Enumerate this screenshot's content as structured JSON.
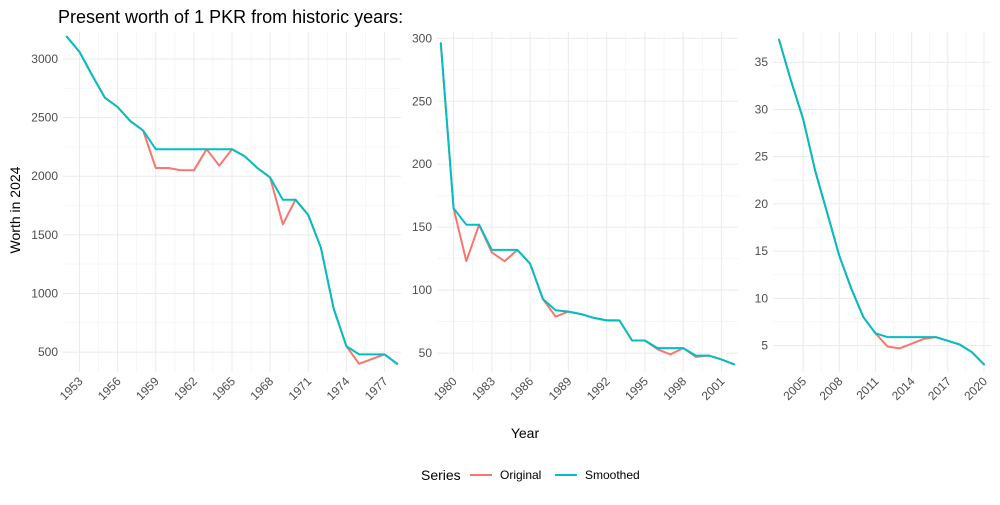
{
  "title": "Present worth of 1 PKR from historic years:",
  "ylabel": "Worth in 2024",
  "xlabel": "Year",
  "legend": {
    "title": "Series",
    "items": [
      {
        "label": "Original",
        "color": "#F8766D"
      },
      {
        "label": "Smoothed",
        "color": "#00BFC4"
      }
    ]
  },
  "chart_data": [
    {
      "type": "line",
      "xlim": [
        1951.7,
        1978.3
      ],
      "ylim": [
        330,
        3230
      ],
      "xticks": [
        1953,
        1956,
        1959,
        1962,
        1965,
        1968,
        1971,
        1974,
        1977
      ],
      "xtick_labels": [
        "1953",
        "1956",
        "1959",
        "1962",
        "1965",
        "1968",
        "1971",
        "1974",
        "1977"
      ],
      "yticks": [
        500,
        1000,
        1500,
        2000,
        2500,
        3000
      ],
      "ytick_labels": [
        "500",
        "1000",
        "1500",
        "2000",
        "2500",
        "3000"
      ],
      "series": [
        {
          "name": "Original",
          "color": "#F8766D",
          "x": [
            1952,
            1953,
            1954,
            1955,
            1956,
            1957,
            1958,
            1959,
            1960,
            1961,
            1962,
            1963,
            1964,
            1965,
            1966,
            1967,
            1968,
            1969,
            1970,
            1971,
            1972,
            1973,
            1974,
            1975,
            1976,
            1977,
            1978
          ],
          "y": [
            3190,
            3060,
            2860,
            2670,
            2590,
            2470,
            2390,
            2070,
            2070,
            2050,
            2050,
            2230,
            2090,
            2230,
            2170,
            2070,
            1990,
            1590,
            1800,
            1670,
            1390,
            870,
            550,
            400,
            440,
            480,
            400
          ]
        },
        {
          "name": "Smoothed",
          "color": "#00BFC4",
          "x": [
            1952,
            1953,
            1954,
            1955,
            1956,
            1957,
            1958,
            1959,
            1960,
            1961,
            1962,
            1963,
            1964,
            1965,
            1966,
            1967,
            1968,
            1969,
            1970,
            1971,
            1972,
            1973,
            1974,
            1975,
            1976,
            1977,
            1978
          ],
          "y": [
            3190,
            3060,
            2860,
            2670,
            2590,
            2470,
            2390,
            2230,
            2230,
            2230,
            2230,
            2230,
            2230,
            2230,
            2170,
            2070,
            1990,
            1800,
            1800,
            1670,
            1390,
            870,
            550,
            480,
            480,
            480,
            400
          ]
        }
      ]
    },
    {
      "type": "line",
      "xlim": [
        1978.7,
        2002.3
      ],
      "ylim": [
        35,
        305
      ],
      "xticks": [
        1980,
        1983,
        1986,
        1989,
        1992,
        1995,
        1998,
        2001
      ],
      "xtick_labels": [
        "1980",
        "1983",
        "1986",
        "1989",
        "1992",
        "1995",
        "1998",
        "2001"
      ],
      "yticks": [
        50,
        100,
        150,
        200,
        250,
        300
      ],
      "ytick_labels": [
        "50",
        "100",
        "150",
        "200",
        "250",
        "300"
      ],
      "series": [
        {
          "name": "Original",
          "color": "#F8766D",
          "x": [
            1979,
            1980,
            1981,
            1982,
            1983,
            1984,
            1985,
            1986,
            1987,
            1988,
            1989,
            1990,
            1991,
            1992,
            1993,
            1994,
            1995,
            1996,
            1997,
            1998,
            1999,
            2000,
            2001,
            2002
          ],
          "y": [
            296,
            165,
            123,
            152,
            130,
            123,
            132,
            121,
            93,
            79,
            83,
            81,
            78,
            76,
            76,
            60,
            60,
            53,
            49,
            54,
            47,
            48,
            45,
            41
          ]
        },
        {
          "name": "Smoothed",
          "color": "#00BFC4",
          "x": [
            1979,
            1980,
            1981,
            1982,
            1983,
            1984,
            1985,
            1986,
            1987,
            1988,
            1989,
            1990,
            1991,
            1992,
            1993,
            1994,
            1995,
            1996,
            1997,
            1998,
            1999,
            2000,
            2001,
            2002
          ],
          "y": [
            296,
            165,
            152,
            152,
            132,
            132,
            132,
            121,
            93,
            84,
            83,
            81,
            78,
            76,
            76,
            60,
            60,
            54,
            54,
            54,
            48,
            48,
            45,
            41
          ]
        }
      ]
    },
    {
      "type": "line",
      "xlim": [
        2002.5,
        2020.5
      ],
      "ylim": [
        2.2,
        38.2
      ],
      "xticks": [
        2005,
        2008,
        2011,
        2014,
        2017,
        2020
      ],
      "xtick_labels": [
        "2005",
        "2008",
        "2011",
        "2014",
        "2017",
        "2020"
      ],
      "yticks": [
        5,
        10,
        15,
        20,
        25,
        30,
        35
      ],
      "ytick_labels": [
        "5",
        "10",
        "15",
        "20",
        "25",
        "30",
        "35"
      ],
      "series": [
        {
          "name": "Original",
          "color": "#F8766D",
          "x": [
            2003,
            2004,
            2005,
            2006,
            2007,
            2008,
            2009,
            2010,
            2011,
            2012,
            2013,
            2014,
            2015,
            2016,
            2017,
            2018,
            2019,
            2020
          ],
          "y": [
            37.4,
            33.0,
            29.0,
            23.5,
            19.0,
            14.5,
            11.0,
            8.0,
            6.3,
            4.9,
            4.7,
            5.2,
            5.7,
            5.9,
            5.5,
            5.1,
            4.3,
            3.0
          ]
        },
        {
          "name": "Smoothed",
          "color": "#00BFC4",
          "x": [
            2003,
            2004,
            2005,
            2006,
            2007,
            2008,
            2009,
            2010,
            2011,
            2012,
            2013,
            2014,
            2015,
            2016,
            2017,
            2018,
            2019,
            2020
          ],
          "y": [
            37.4,
            33.0,
            29.0,
            23.5,
            19.0,
            14.5,
            11.0,
            8.0,
            6.3,
            5.9,
            5.9,
            5.9,
            5.9,
            5.9,
            5.5,
            5.1,
            4.3,
            3.0
          ]
        }
      ]
    }
  ]
}
